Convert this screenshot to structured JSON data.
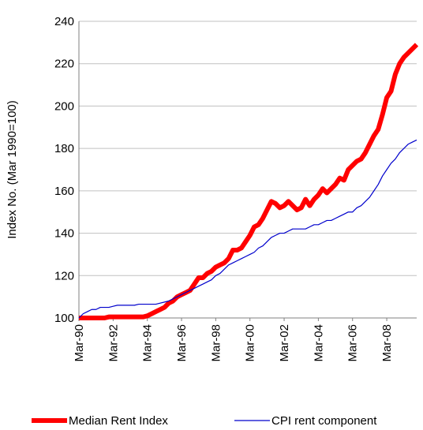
{
  "chart_data": {
    "type": "line",
    "y_label": "Index No. (Mar 1990=100)",
    "categories": [
      "Mar-90",
      null,
      null,
      null,
      null,
      null,
      null,
      null,
      "Mar-92",
      null,
      null,
      null,
      null,
      null,
      null,
      null,
      "Mar-94",
      null,
      null,
      null,
      null,
      null,
      null,
      null,
      "Mar-96",
      null,
      null,
      null,
      null,
      null,
      null,
      null,
      "Mar-98",
      null,
      null,
      null,
      null,
      null,
      null,
      null,
      "Mar-00",
      null,
      null,
      null,
      null,
      null,
      null,
      null,
      "Mar-02",
      null,
      null,
      null,
      null,
      null,
      null,
      null,
      "Mar-04",
      null,
      null,
      null,
      null,
      null,
      null,
      null,
      "Mar-06",
      null,
      null,
      null,
      null,
      null,
      null,
      null,
      "Mar-08",
      null,
      null,
      null,
      null,
      null,
      null,
      null
    ],
    "series": [
      {
        "name": "Median Rent Index",
        "color": "#ff0000",
        "width": 6,
        "values": [
          100,
          100,
          100,
          100,
          100,
          100,
          100,
          100.5,
          100.5,
          100.5,
          100.5,
          100.5,
          100.5,
          100.5,
          100.5,
          100.5,
          101,
          102,
          103,
          104,
          105,
          107,
          108,
          110,
          111,
          112,
          113,
          116,
          119,
          119,
          121,
          122,
          124,
          125,
          126,
          128,
          132,
          132,
          133,
          136,
          139,
          143,
          144,
          147,
          151,
          155,
          154,
          152,
          153,
          155,
          153,
          151,
          152,
          156,
          153,
          156,
          158,
          161,
          159,
          161,
          163,
          166,
          165,
          170,
          172,
          174,
          175,
          178,
          182,
          186,
          189,
          196,
          204,
          207,
          215,
          220,
          223,
          225,
          227,
          229
        ]
      },
      {
        "name": "CPI rent component",
        "color": "#0000cc",
        "width": 1.2,
        "values": [
          100,
          102,
          103,
          104,
          104,
          105,
          105,
          105,
          105.5,
          106,
          106,
          106,
          106,
          106,
          106.5,
          106.5,
          106.5,
          106.5,
          106.5,
          107,
          107.5,
          108,
          109,
          110,
          111,
          112,
          113,
          114,
          115,
          116,
          117,
          118,
          120,
          121,
          123,
          125,
          126,
          127,
          128,
          129,
          130,
          131,
          133,
          134,
          136,
          138,
          139,
          140,
          140,
          141,
          142,
          142,
          142,
          142,
          143,
          144,
          144,
          145,
          146,
          146,
          147,
          148,
          149,
          150,
          150,
          152,
          153,
          155,
          157,
          160,
          163,
          167,
          170,
          173,
          175,
          178,
          180,
          182,
          183,
          184
        ]
      }
    ],
    "ylim": [
      100,
      240
    ],
    "yticks": [
      100,
      120,
      140,
      160,
      180,
      200,
      220,
      240
    ],
    "grid": true,
    "legend": "bottom"
  }
}
